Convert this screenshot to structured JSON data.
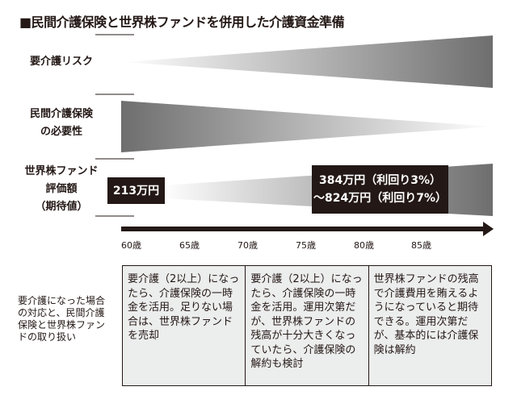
{
  "title": "■民間介護保険と世界株ファンドを併用した介護資金準備",
  "rows": [
    {
      "label": "要介護リスク"
    },
    {
      "label_lines": [
        "民間介護保険",
        "の必要性"
      ]
    },
    {
      "label_lines": [
        "世界株ファンド",
        "評価額",
        "（期待値）"
      ]
    }
  ],
  "fund_start": "213万円",
  "fund_end": [
    "384万円（利回り3%）",
    "～824万円（利回り7%）"
  ],
  "ages": [
    "60歳",
    "65歳",
    "70歳",
    "75歳",
    "80歳",
    "85歳"
  ],
  "table": {
    "side_label": "要介護になった場合の対応と、民間介護保険と世界株ファンドの取り扱い",
    "cells": [
      "要介護（2以上）になったら、介護保険の一時金を活用。足りない場合は、世界株ファンドを売却",
      "要介護（2以上）になったら、介護保険の一時金を活用。運用次第だが、世界株ファンドの残高が十分大きくなっていたら、介護保険の解約も検討",
      "世界株ファンドの残高で介護費用を賄えるようになっていると期待できる。運用次第だが、基本的には介護保険は解約"
    ]
  },
  "colors": {
    "dark": "#231815",
    "gray": "#6e6e6e"
  }
}
